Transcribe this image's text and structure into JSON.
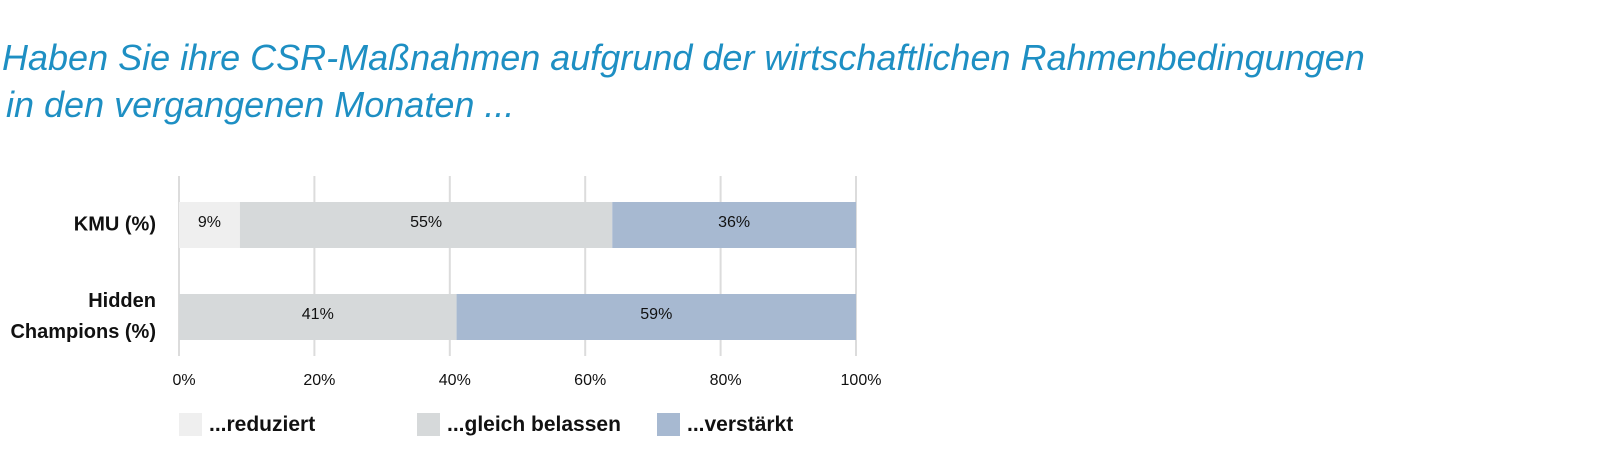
{
  "title_line1": "Haben Sie ihre CSR-Maßnahmen aufgrund der wirtschaftlichen Rahmenbedingungen",
  "title_line2": "in den vergangenen Monaten ...",
  "chart_data": {
    "type": "bar",
    "orientation": "horizontal",
    "stacked": true,
    "categories": [
      [
        "KMU (%)"
      ],
      [
        "Hidden",
        "Champions (%)"
      ]
    ],
    "series": [
      {
        "name": "...reduziert",
        "color": "#efefef",
        "values": [
          9,
          0
        ],
        "labels": [
          "9%",
          ""
        ]
      },
      {
        "name": "...gleich belassen",
        "color": "#d6d9da",
        "values": [
          55,
          41
        ],
        "labels": [
          "55%",
          "41%"
        ]
      },
      {
        "name": "...verstärkt",
        "color": "#a7b9d1",
        "values": [
          36,
          59
        ],
        "labels": [
          "36%",
          "59%"
        ]
      }
    ],
    "xlim": [
      0,
      100
    ],
    "xticks": [
      0,
      20,
      40,
      60,
      80,
      100
    ],
    "xtick_labels": [
      "0%",
      "20%",
      "40%",
      "60%",
      "80%",
      "100%"
    ],
    "grid": true,
    "gridColor": "#dcdcdc",
    "legend_position": "bottom"
  }
}
